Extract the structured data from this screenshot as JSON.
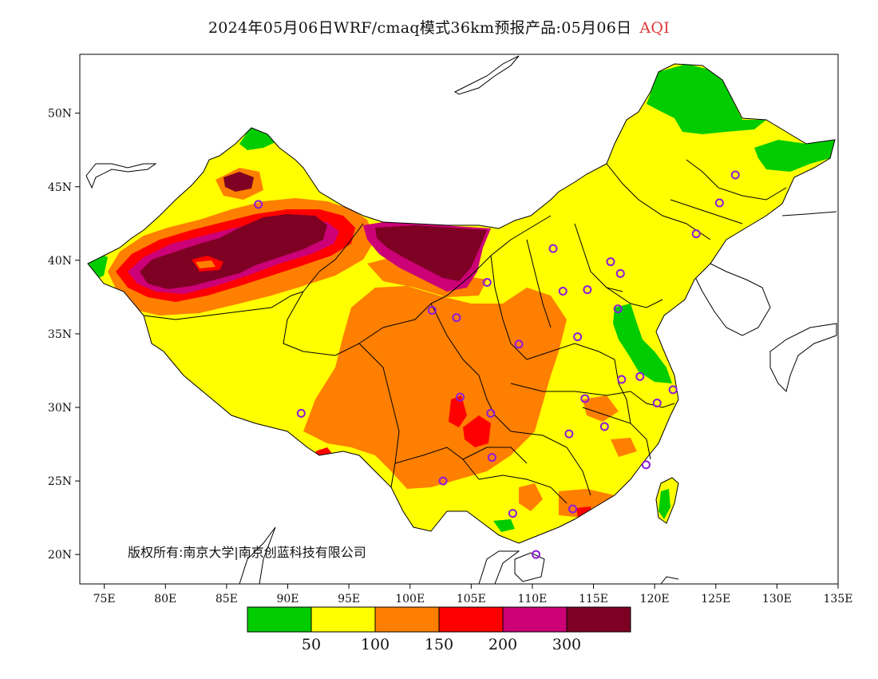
{
  "title": {
    "main": "2024年05月06日WRF/cmaq模式36km预报产品:05月06日",
    "variable": "AQI"
  },
  "map": {
    "lon_range": [
      73,
      135
    ],
    "lat_range": [
      18,
      54
    ],
    "x_ticks": [
      "75E",
      "80E",
      "85E",
      "90E",
      "95E",
      "100E",
      "105E",
      "110E",
      "115E",
      "120E",
      "125E",
      "130E",
      "135E"
    ],
    "y_ticks": [
      "50N",
      "45N",
      "40N",
      "35N",
      "30N",
      "25N",
      "20N"
    ],
    "copyright": "版权所有:南京大学|南京创蓝科技有限公司",
    "colors": {
      "good": "#00cc00",
      "moderate": "#ffff00",
      "usg": "#ff7f00",
      "unhealthy": "#ff0000",
      "very_unhealthy": "#cc0077",
      "hazardous": "#7e0023",
      "outline": "#000000",
      "city_marker": "#8e1bd9"
    }
  },
  "legend": {
    "colors": [
      "#00cc00",
      "#ffff00",
      "#ff7f00",
      "#ff0000",
      "#cc0077",
      "#7e0023"
    ],
    "labels": [
      "50",
      "100",
      "150",
      "200",
      "300"
    ]
  }
}
